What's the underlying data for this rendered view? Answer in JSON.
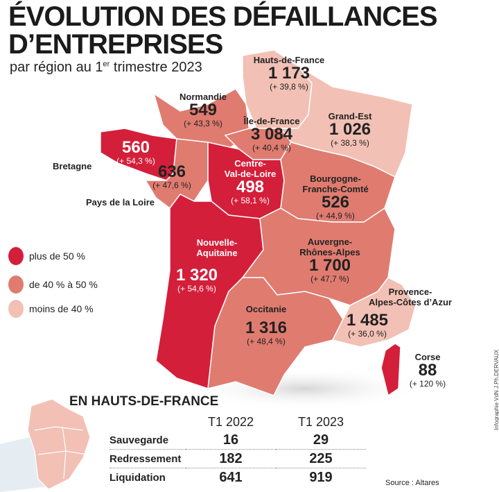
{
  "title_line1": "ÉVOLUTION DES DÉFAILLANCES",
  "title_line2": "D’ENTREPRISES",
  "subtitle_pre": "par région au 1",
  "subtitle_sup": "er",
  "subtitle_post": " trimestre 2023",
  "colors": {
    "high": "#d41f3a",
    "mid": "#e07b70",
    "low": "#f2c0b4"
  },
  "legend": [
    {
      "label": "plus de 50 %",
      "color": "#d41f3a"
    },
    {
      "label": "de 40 % à 50 %",
      "color": "#e07b70"
    },
    {
      "label": "moins de 40 %",
      "color": "#f2c0b4"
    }
  ],
  "regions": {
    "hdf": {
      "name": "Hauts-de-France",
      "value": "1 173",
      "change": "(+ 39,8 %)"
    },
    "normandie": {
      "name": "Normandie",
      "value": "549",
      "change": "(+ 43,3 %)"
    },
    "idf": {
      "name": "Île-de-France",
      "value": "3 084",
      "change": "(+ 40,4 %)"
    },
    "grandest": {
      "name": "Grand-Est",
      "value": "1 026",
      "change": "(+ 38,3 %)"
    },
    "bretagne": {
      "name": "Bretagne",
      "value": "560",
      "change": "(+ 54,3 %)"
    },
    "pdl": {
      "name": "Pays de la Loire",
      "value": "636",
      "change": "(+ 47,6 %)"
    },
    "cvl": {
      "name1": "Centre-",
      "name2": "Val-de-Loire",
      "value": "498",
      "change": "(+ 58,1 %)"
    },
    "bfc": {
      "name1": "Bourgogne-",
      "name2": "Franche-Comté",
      "value": "526",
      "change": "(+ 44,9 %)"
    },
    "na": {
      "name1": "Nouvelle-",
      "name2": "Aquitaine",
      "value": "1 320",
      "change": "(+ 54,6 %)"
    },
    "ara": {
      "name1": "Auvergne-",
      "name2": "Rhônes-Alpes",
      "value": "1 700",
      "change": "(+ 47,7 %)"
    },
    "occitanie": {
      "name": "Occitanie",
      "value": "1 316",
      "change": "(+ 48,4 %)"
    },
    "paca": {
      "name1": "Provence-",
      "name2": "Alpes-Côtes d’Azur",
      "value": "1 485",
      "change": "(+ 36,0 %)"
    },
    "corse": {
      "name": "Corse",
      "value": "88",
      "change": "(+ 120 %)"
    }
  },
  "hdf_table": {
    "title": "EN HAUTS-DE-FRANCE",
    "columns": [
      "T1 2022",
      "T1 2023"
    ],
    "rows": [
      {
        "label": "Sauvegarde",
        "t1_2022": "16",
        "t1_2023": "29"
      },
      {
        "label": "Redressement",
        "t1_2022": "182",
        "t1_2023": "225"
      },
      {
        "label": "Liquidation",
        "t1_2022": "641",
        "t1_2023": "919"
      }
    ]
  },
  "source": "Source : Altares",
  "credit": "Infographie VdN J.Ph.DERVAUX"
}
